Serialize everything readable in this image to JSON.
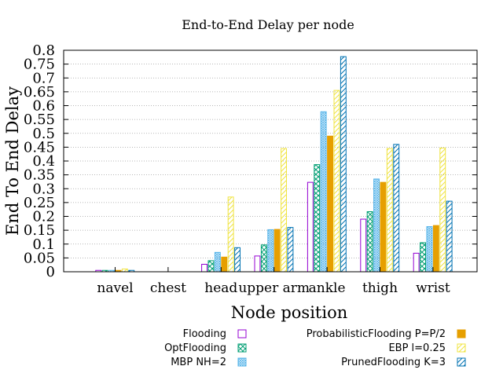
{
  "chart_data": {
    "type": "bar",
    "title": "End-to-End Delay per node",
    "xlabel": "Node position",
    "ylabel": "End To End Delay",
    "ylim": [
      0,
      0.8
    ],
    "yticks": [
      "0",
      "0.05",
      "0.1",
      "0.15",
      "0.2",
      "0.25",
      "0.3",
      "0.35",
      "0.4",
      "0.45",
      "0.5",
      "0.55",
      "0.6",
      "0.65",
      "0.7",
      "0.75",
      "0.8"
    ],
    "grid": "horizontal dotted",
    "categories": [
      "navel",
      "chest",
      "head",
      "upper arm",
      "ankle",
      "thigh",
      "wrist"
    ],
    "series": [
      {
        "name": "Flooding",
        "color": "#9400d3",
        "pattern": "empty",
        "values": [
          0.005,
          0,
          0.027,
          0.057,
          0.323,
          0.19,
          0.067
        ]
      },
      {
        "name": "OptFlooding",
        "color": "#009e73",
        "pattern": "crosshatch",
        "values": [
          0.005,
          0,
          0.04,
          0.097,
          0.387,
          0.217,
          0.105
        ]
      },
      {
        "name": "MBP NH=2",
        "color": "#56b4e9",
        "pattern": "dense",
        "values": [
          0.005,
          0,
          0.07,
          0.152,
          0.578,
          0.335,
          0.163
        ]
      },
      {
        "name": "ProbabilisticFlooding P=P/2",
        "color": "#e69f00",
        "pattern": "solid",
        "values": [
          0.005,
          0,
          0.053,
          0.153,
          0.49,
          0.323,
          0.167
        ]
      },
      {
        "name": "EBP l=0.25",
        "color": "#f0e442",
        "pattern": "diagonal-light",
        "values": [
          0.01,
          0,
          0.27,
          0.445,
          0.655,
          0.445,
          0.447
        ]
      },
      {
        "name": "PrunedFlooding K=3",
        "color": "#0072b2",
        "pattern": "diagonal",
        "values": [
          0.005,
          0,
          0.087,
          0.16,
          0.777,
          0.46,
          0.255
        ]
      }
    ],
    "legend_position": "bottom"
  }
}
